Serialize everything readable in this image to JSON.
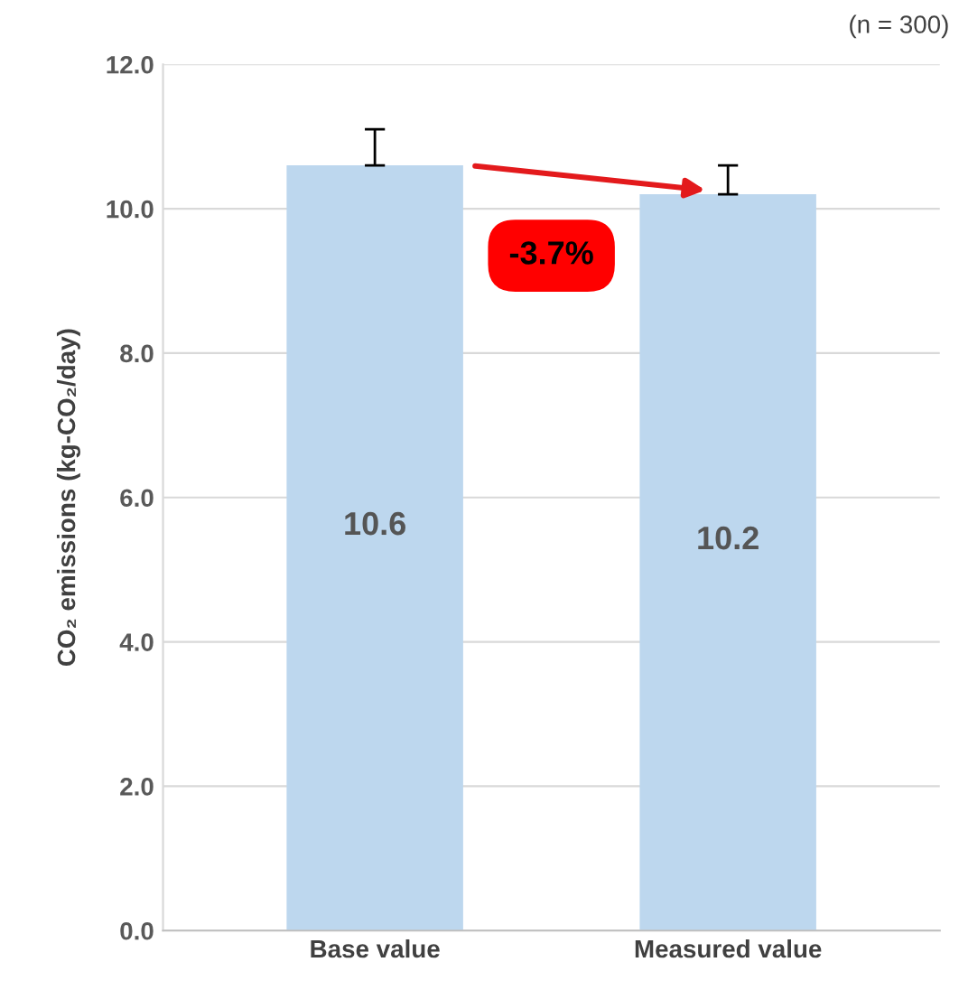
{
  "chart_data": {
    "type": "bar",
    "categories": [
      "Base value",
      "Measured value"
    ],
    "values": [
      10.6,
      10.2
    ],
    "color": "#bdd7ee",
    "errors": [
      [
        10.6,
        11.1
      ],
      [
        10.2,
        10.6
      ]
    ],
    "data_labels": true,
    "ylabel": "CO₂ emissions (kg-CO₂/day)",
    "ylim": [
      0,
      12
    ],
    "yticks": [
      {
        "value": 0,
        "label": "0.0"
      },
      {
        "value": 2,
        "label": "2.0"
      },
      {
        "value": 4,
        "label": "4.0"
      },
      {
        "value": 6,
        "label": "6.0"
      },
      {
        "value": 8,
        "label": "8.0"
      },
      {
        "value": 10,
        "label": "10.0"
      },
      {
        "value": 12,
        "label": "12.0"
      }
    ],
    "grid": "y",
    "annotations": [
      "(n = 300)",
      "-3.7%"
    ]
  }
}
